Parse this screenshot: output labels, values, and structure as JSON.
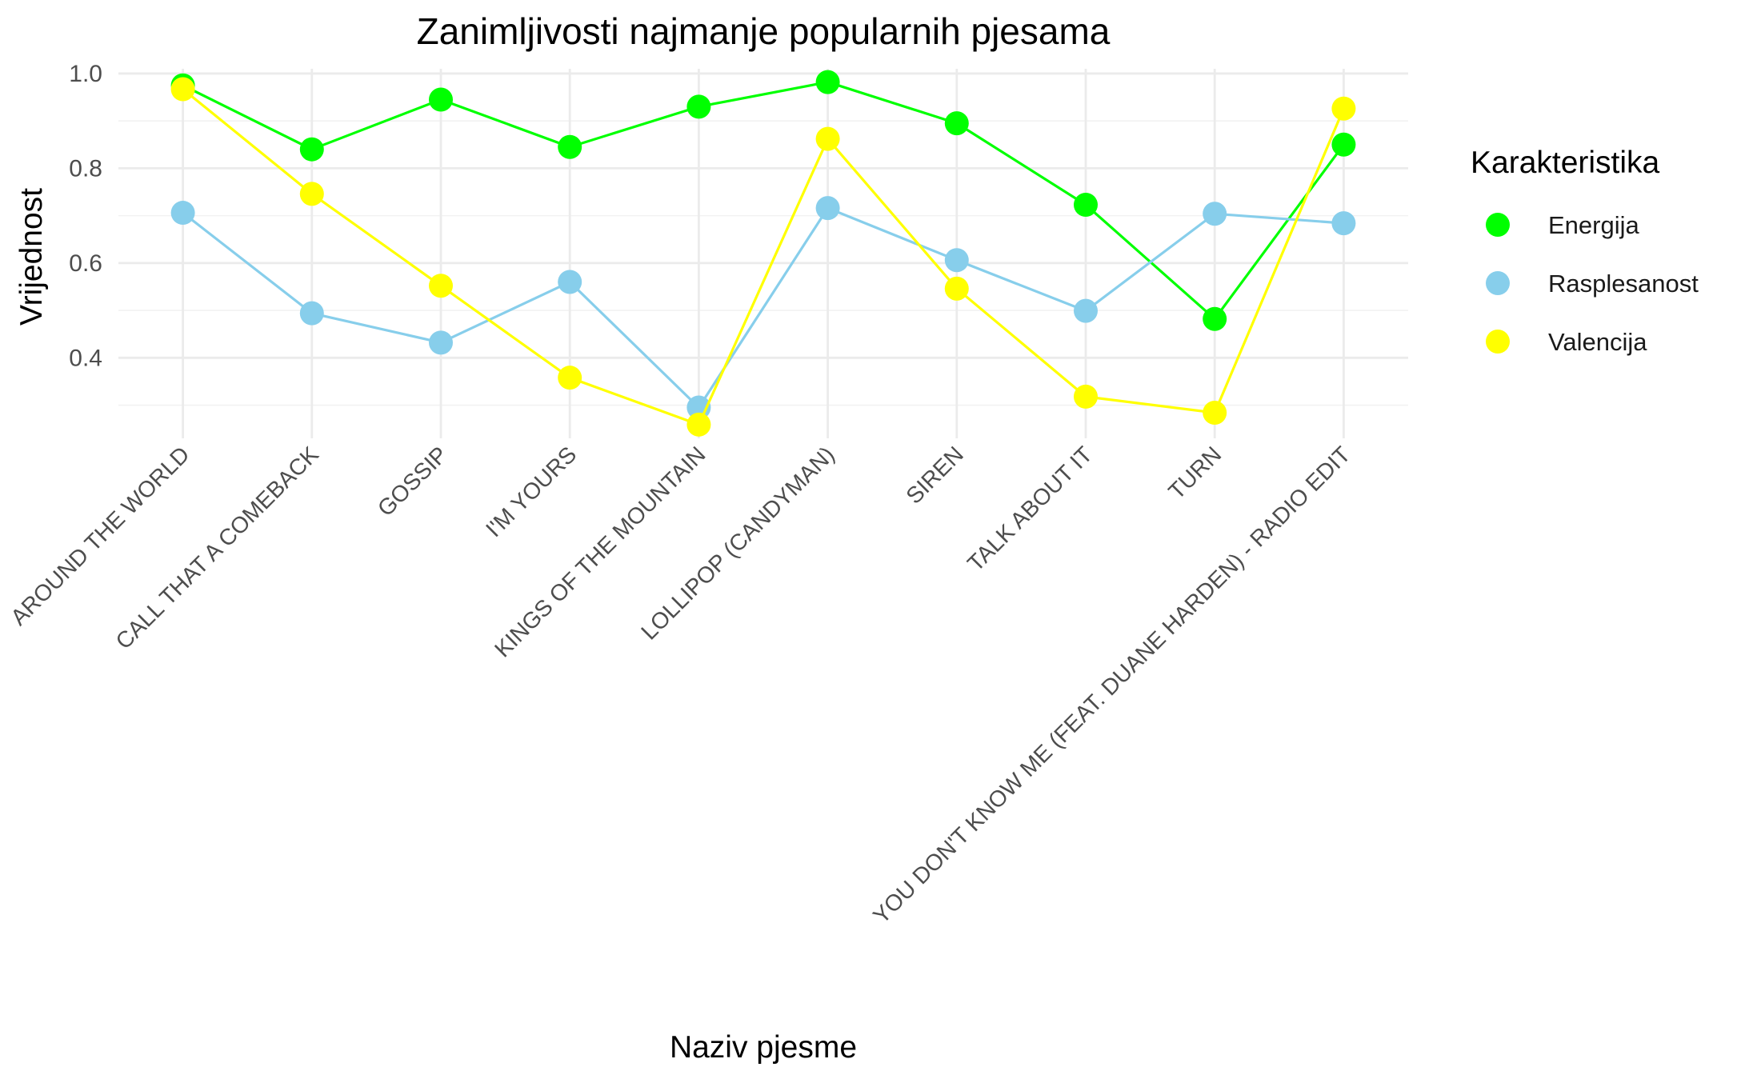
{
  "chart_data": {
    "type": "line",
    "title": "Zanimljivosti najmanje popularnih pjesama",
    "xlabel": "Naziv pjesme",
    "ylabel": "Vrijednost",
    "categories": [
      "AROUND THE WORLD",
      "CALL THAT A COMEBACK",
      "GOSSIP",
      "I'M YOURS",
      "KINGS OF THE MOUNTAIN",
      "LOLLIPOP (CANDYMAN)",
      "SIREN",
      "TALK ABOUT IT",
      "TURN",
      "YOU DON'T KNOW ME (FEAT. DUANE HARDEN) - RADIO EDIT"
    ],
    "y_ticks": [
      "0.4",
      "0.6",
      "0.8",
      "1.0"
    ],
    "ylim": [
      0.23,
      1.01
    ],
    "grid": true,
    "legend": {
      "title": "Karakteristika",
      "placement": "right"
    },
    "series": [
      {
        "name": "Energija",
        "color": "#00ff00",
        "values": [
          0.975,
          0.84,
          0.945,
          0.845,
          0.93,
          0.982,
          0.895,
          0.723,
          0.482,
          0.85
        ]
      },
      {
        "name": "Rasplesanost",
        "color": "#87ceeb",
        "values": [
          0.706,
          0.494,
          0.432,
          0.56,
          0.295,
          0.716,
          0.606,
          0.499,
          0.704,
          0.684
        ]
      },
      {
        "name": "Valencija",
        "color": "#ffff00",
        "values": [
          0.967,
          0.746,
          0.552,
          0.358,
          0.259,
          0.862,
          0.546,
          0.318,
          0.284,
          0.926
        ]
      }
    ]
  }
}
